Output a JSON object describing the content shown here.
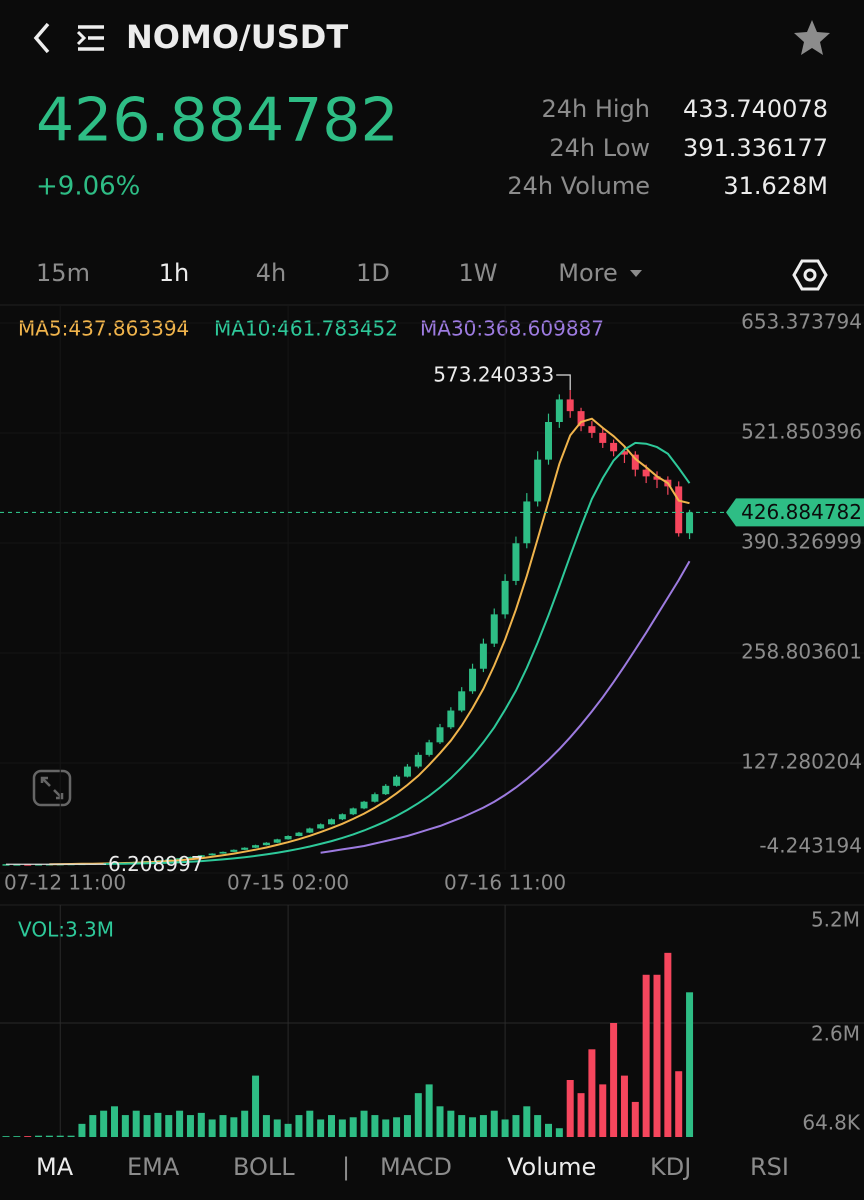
{
  "header": {
    "title": "NOMO/USDT",
    "price": "426.884782",
    "change": "+9.06%"
  },
  "stats": [
    {
      "label": "24h High",
      "value": "433.740078"
    },
    {
      "label": "24h Low",
      "value": "391.336177"
    },
    {
      "label": "24h Volume",
      "value": "31.628M"
    }
  ],
  "timeframes": [
    "15m",
    "1h",
    "4h",
    "1D",
    "1W",
    "More"
  ],
  "ma_labels": [
    "MA5:437.863394",
    "MA10:461.783452",
    "MA30:368.609887"
  ],
  "chart_data": [
    {
      "type": "candlestick",
      "up_color": "#2ebd85",
      "down_color": "#f6465d",
      "categories": [
        null,
        null,
        null,
        null,
        null,
        "07-12 11:00",
        null,
        null,
        null,
        null,
        null,
        null,
        null,
        null,
        null,
        null,
        null,
        null,
        null,
        null,
        null,
        null,
        null,
        null,
        null,
        null,
        "07-15 02:00",
        null,
        null,
        null,
        null,
        null,
        null,
        null,
        null,
        null,
        null,
        null,
        null,
        null,
        null,
        null,
        null,
        null,
        null,
        null,
        "07-16 11:00",
        null,
        null,
        null,
        null,
        null,
        null,
        null,
        null,
        null,
        null,
        null,
        null,
        null,
        null,
        null,
        null,
        null
      ],
      "open": [
        6.25,
        6.3,
        6.32,
        6.3,
        6.4,
        6.5,
        6.6,
        6.8,
        7.0,
        7.3,
        7.6,
        8.0,
        8.5,
        9.2,
        10,
        11,
        12,
        13.5,
        15,
        17,
        19,
        21,
        23.5,
        26,
        29,
        32,
        36,
        40,
        44,
        49,
        54,
        60,
        66,
        73,
        81,
        90,
        100,
        111,
        123,
        137,
        152,
        170,
        190,
        213,
        240,
        270,
        305,
        345,
        390,
        440,
        490,
        535,
        562,
        548,
        530,
        522,
        510,
        500,
        496,
        478,
        470,
        466,
        458,
        402
      ],
      "high": [
        6.35,
        6.38,
        6.36,
        6.45,
        6.55,
        6.7,
        6.9,
        7.1,
        7.4,
        7.7,
        8.1,
        8.6,
        9.3,
        10.2,
        11.2,
        12.2,
        13.8,
        15.3,
        17.3,
        19.4,
        21.4,
        24,
        26.5,
        29.6,
        32.6,
        36.7,
        40.8,
        44.9,
        50,
        55,
        61,
        67,
        74,
        82,
        92,
        102,
        113,
        126,
        140,
        155,
        174,
        194,
        218,
        246,
        276,
        312,
        353,
        398,
        450,
        500,
        545,
        568,
        573.240333,
        552,
        536,
        528,
        514,
        506,
        500,
        484,
        476,
        470,
        464,
        430
      ],
      "low": [
        6.208997,
        6.26,
        6.27,
        6.26,
        6.35,
        6.45,
        6.55,
        6.75,
        6.9,
        7.2,
        7.5,
        7.9,
        8.4,
        9.1,
        9.9,
        10.9,
        11.9,
        13.3,
        14.8,
        16.8,
        18.8,
        20.8,
        23.2,
        25.7,
        28.7,
        31.7,
        35.6,
        39.6,
        43.5,
        48.5,
        53.5,
        59,
        65,
        72,
        80,
        89,
        99,
        110,
        121,
        135,
        150,
        168,
        188,
        210,
        236,
        266,
        300,
        340,
        384,
        434,
        484,
        528,
        540,
        524,
        516,
        504,
        494,
        486,
        470,
        462,
        456,
        448,
        398,
        395
      ],
      "close": [
        6.3,
        6.32,
        6.3,
        6.4,
        6.5,
        6.6,
        6.8,
        7.0,
        7.3,
        7.6,
        8.0,
        8.5,
        9.2,
        10,
        11,
        12,
        13.5,
        15,
        17,
        19,
        21,
        23.5,
        26,
        29,
        32,
        36,
        40,
        44,
        49,
        54,
        60,
        66,
        73,
        81,
        90,
        100,
        111,
        123,
        137,
        152,
        170,
        190,
        213,
        240,
        270,
        305,
        345,
        390,
        440,
        490,
        535,
        562,
        548,
        530,
        522,
        510,
        500,
        496,
        478,
        470,
        466,
        458,
        402,
        426.884782
      ],
      "series": [
        {
          "name": "MA5",
          "color": "#f0b44c",
          "values": [
            null,
            null,
            null,
            null,
            6.3,
            6.4,
            6.5,
            6.7,
            6.9,
            7.1,
            7.4,
            7.7,
            8.1,
            8.6,
            9.3,
            10.1,
            11,
            12.2,
            13.5,
            15.1,
            17,
            19,
            21.2,
            23.6,
            26.3,
            29.3,
            32.6,
            36.2,
            40.2,
            44.6,
            49.4,
            54.6,
            60.4,
            66.8,
            74,
            82,
            91,
            101,
            112,
            125,
            139,
            154,
            172,
            193,
            216,
            244,
            275,
            311,
            351,
            395,
            440,
            485,
            519,
            535,
            539,
            528,
            518,
            506,
            491,
            481,
            470,
            462,
            441,
            437.863394
          ]
        },
        {
          "name": "MA10",
          "color": "#2ec99a",
          "values": [
            null,
            null,
            null,
            null,
            null,
            null,
            null,
            null,
            null,
            6.5,
            6.7,
            6.9,
            7.1,
            7.4,
            7.7,
            8.1,
            8.6,
            9.2,
            10,
            10.9,
            12,
            13.2,
            14.6,
            16.2,
            18,
            20,
            22.2,
            24.7,
            27.4,
            30.5,
            33.9,
            37.7,
            41.9,
            46.6,
            51.8,
            57.6,
            64,
            71.2,
            79.2,
            88,
            98,
            109,
            122,
            136,
            152,
            170,
            191,
            214,
            241,
            271,
            304,
            339,
            375,
            410,
            443,
            468,
            489,
            502,
            510,
            509,
            505,
            497,
            480,
            461.783452
          ]
        },
        {
          "name": "MA30",
          "color": "#9d7be0",
          "values": [
            null,
            null,
            null,
            null,
            null,
            null,
            null,
            null,
            null,
            null,
            null,
            null,
            null,
            null,
            null,
            null,
            null,
            null,
            null,
            null,
            null,
            null,
            null,
            null,
            null,
            null,
            null,
            null,
            null,
            20,
            22,
            24,
            26,
            28,
            31,
            34,
            37,
            40,
            44,
            48,
            52,
            57,
            62,
            68,
            74,
            81,
            89,
            98,
            108,
            119,
            131,
            144,
            158,
            173,
            189,
            206,
            224,
            243,
            263,
            283,
            304,
            325,
            346,
            368.609887
          ]
        }
      ],
      "ylim": [
        -4.243194,
        653.373794
      ],
      "yticks": [
        653.373794,
        521.850396,
        390.326999,
        258.803601,
        127.280204,
        -4.243194
      ]
    },
    {
      "type": "bar",
      "title": "VOL:3.3M",
      "values": [
        20000,
        20000,
        20000,
        30000,
        30000,
        30000,
        30000,
        300000,
        500000,
        600000,
        700000,
        500000,
        600000,
        500000,
        550000,
        500000,
        600000,
        500000,
        550000,
        400000,
        500000,
        450000,
        600000,
        1400000,
        500000,
        400000,
        300000,
        500000,
        600000,
        400000,
        500000,
        400000,
        450000,
        600000,
        500000,
        400000,
        450000,
        500000,
        1000000,
        1200000,
        700000,
        600000,
        500000,
        450000,
        500000,
        600000,
        400000,
        500000,
        700000,
        500000,
        300000,
        200000,
        1300000,
        1000000,
        2000000,
        1200000,
        2600000,
        1400000,
        800000,
        3700000,
        3700000,
        4200000,
        1500000,
        3300000
      ],
      "ylim": [
        0,
        5200000
      ],
      "yticks": [
        {
          "value": 5200000,
          "label": "5.2M"
        },
        {
          "value": 2600000,
          "label": "2.6M"
        },
        {
          "value": 64800,
          "label": "64.8K"
        }
      ]
    }
  ],
  "indicator_tabs": [
    "MA",
    "EMA",
    "BOLL",
    "|",
    "MACD",
    "Volume",
    "KDJ",
    "RSI"
  ]
}
